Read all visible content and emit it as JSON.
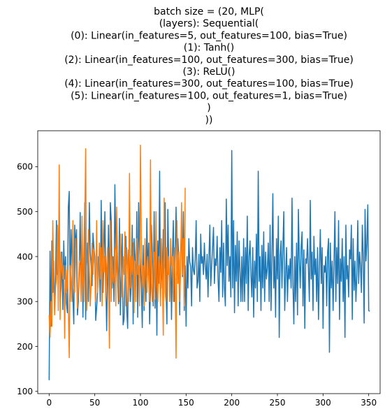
{
  "chart_data": {
    "type": "line",
    "title_lines": [
      "batch size = (20, MLP(",
      "(layers): Sequential(",
      "(0): Linear(in_features=5, out_features=100, bias=True)",
      "(1): Tanh()",
      "(2): Linear(in_features=100, out_features=300, bias=True)",
      "(3): ReLU()",
      "(4): Linear(in_features=300, out_features=100, bias=True)",
      "(5): Linear(in_features=100, out_features=1, bias=True)",
      ")",
      "))"
    ],
    "xlabel": "",
    "ylabel": "",
    "xlim": [
      -12.5,
      362.5
    ],
    "ylim": [
      95,
      680
    ],
    "x_ticks": [
      0,
      50,
      100,
      150,
      200,
      250,
      300,
      350
    ],
    "y_ticks": [
      100,
      200,
      300,
      400,
      500,
      600
    ],
    "grid": false,
    "legend": "none",
    "series": [
      {
        "color": "#1f77b4",
        "x_start": 0,
        "x_step": 1,
        "values": [
          125,
          412,
          245,
          435,
          320,
          390,
          282,
          350,
          480,
          360,
          400,
          515,
          300,
          330,
          410,
          282,
          435,
          350,
          400,
          295,
          275,
          510,
          545,
          300,
          460,
          400,
          310,
          250,
          470,
          420,
          460,
          270,
          300,
          375,
          498,
          345,
          450,
          265,
          385,
          520,
          260,
          380,
          430,
          300,
          520,
          410,
          380,
          335,
          452,
          420,
          400,
          258,
          285,
          320,
          400,
          380,
          300,
          525,
          375,
          320,
          400,
          500,
          350,
          235,
          360,
          470,
          280,
          520,
          480,
          330,
          400,
          300,
          560,
          420,
          400,
          355,
          295,
          485,
          270,
          360,
          450,
          248,
          260,
          345,
          445,
          280,
          240,
          415,
          365,
          300,
          340,
          470,
          250,
          440,
          400,
          310,
          500,
          265,
          520,
          420,
          380,
          330,
          242,
          425,
          280,
          395,
          300,
          485,
          360,
          430,
          250,
          325,
          470,
          408,
          290,
          500,
          285,
          400,
          225,
          435,
          340,
          590,
          310,
          395,
          330,
          460,
          375,
          520,
          330,
          250,
          505,
          385,
          300,
          420,
          260,
          395,
          480,
          300,
          395,
          510,
          360,
          440,
          395,
          270,
          410,
          465,
          355,
          500,
          280,
          380,
          245,
          400,
          330,
          440,
          388,
          378,
          290,
          420,
          370,
          360,
          395,
          480,
          330,
          345,
          405,
          300,
          450,
          385,
          400,
          360,
          430,
          380,
          350,
          405,
          310,
          395,
          470,
          335,
          380,
          420,
          465,
          340,
          395,
          380,
          445,
          350,
          300,
          420,
          365,
          480,
          310,
          430,
          330,
          290,
          528,
          380,
          470,
          345,
          400,
          310,
          636,
          330,
          480,
          275,
          425,
          345,
          455,
          290,
          435,
          370,
          300,
          400,
          300,
          440,
          300,
          420,
          340,
          490,
          280,
          400,
          435,
          360,
          310,
          420,
          265,
          390,
          330,
          450,
          300,
          590,
          345,
          400,
          280,
          425,
          330,
          455,
          300,
          410,
          350,
          375,
          430,
          300,
          470,
          280,
          395,
          540,
          330,
          400,
          265,
          440,
          350,
          490,
          220,
          400,
          435,
          330,
          420,
          500,
          280,
          360,
          420,
          300,
          380,
          350,
          395,
          330,
          530,
          340,
          250,
          400,
          300,
          430,
          270,
          505,
          395,
          330,
          420,
          455,
          290,
          415,
          240,
          395,
          385,
          440,
          370,
          300,
          525,
          350,
          410,
          280,
          445,
          360,
          395,
          300,
          420,
          260,
          375,
          460,
          340,
          420,
          240,
          380,
          365,
          400,
          290,
          410,
          440,
          187,
          430,
          330,
          390,
          280,
          385,
          500,
          300,
          420,
          340,
          480,
          260,
          395,
          345,
          440,
          300,
          400,
          220,
          470,
          350,
          380,
          310,
          415,
          395,
          470,
          260,
          440,
          325,
          390,
          300,
          360,
          480,
          340,
          410,
          380,
          320,
          470,
          400,
          252,
          505,
          390,
          430,
          515,
          280,
          278
        ]
      },
      {
        "color": "#ff7f0e",
        "x_start": 0,
        "x_step": 1,
        "values": [
          270,
          220,
          300,
          245,
          480,
          345,
          270,
          330,
          350,
          470,
          280,
          604,
          260,
          410,
          370,
          350,
          380,
          218,
          380,
          320,
          370,
          290,
          175,
          380,
          350,
          300,
          480,
          340,
          320,
          440,
          360,
          285,
          330,
          390,
          380,
          300,
          490,
          350,
          300,
          480,
          640,
          280,
          320,
          460,
          370,
          290,
          340,
          430,
          360,
          415,
          380,
          300,
          480,
          320,
          360,
          430,
          350,
          420,
          290,
          480,
          365,
          400,
          300,
          370,
          420,
          350,
          196,
          480,
          300,
          400,
          340,
          360,
          420,
          290,
          510,
          380,
          340,
          300,
          450,
          370,
          310,
          400,
          360,
          455,
          290,
          420,
          380,
          300,
          585,
          330,
          400,
          360,
          430,
          275,
          390,
          300,
          440,
          360,
          380,
          290,
          648,
          420,
          330,
          380,
          290,
          440,
          360,
          320,
          400,
          350,
          300,
          615,
          340,
          300,
          380,
          410,
          305,
          500,
          340,
          300,
          400,
          380,
          290,
          440,
          360,
          225,
          530,
          320,
          300,
          420,
          360,
          400,
          300,
          440,
          380,
          400,
          300,
          420,
          360,
          174,
          480,
          340,
          410,
          300,
          380,
          520,
          360,
          440,
          290,
          553
        ]
      }
    ]
  }
}
